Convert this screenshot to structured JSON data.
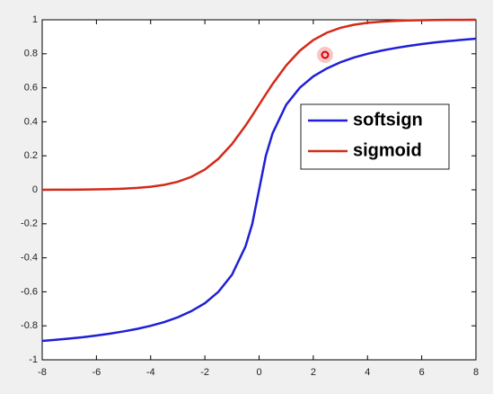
{
  "chart_data": {
    "type": "line",
    "x": [
      -8,
      -7.5,
      -7,
      -6.5,
      -6,
      -5.5,
      -5,
      -4.5,
      -4,
      -3.5,
      -3,
      -2.5,
      -2,
      -1.5,
      -1,
      -0.5,
      -0.25,
      0,
      0.25,
      0.5,
      1,
      1.5,
      2,
      2.5,
      3,
      3.5,
      4,
      4.5,
      5,
      5.5,
      6,
      6.5,
      7,
      7.5,
      8
    ],
    "series": [
      {
        "name": "softsign",
        "color": "#1f1fd6",
        "values": [
          -0.889,
          -0.882,
          -0.875,
          -0.867,
          -0.857,
          -0.846,
          -0.833,
          -0.818,
          -0.8,
          -0.778,
          -0.75,
          -0.714,
          -0.667,
          -0.6,
          -0.5,
          -0.333,
          -0.2,
          0,
          0.2,
          0.333,
          0.5,
          0.6,
          0.667,
          0.714,
          0.75,
          0.778,
          0.8,
          0.818,
          0.833,
          0.846,
          0.857,
          0.867,
          0.875,
          0.882,
          0.889
        ]
      },
      {
        "name": "sigmoid",
        "color": "#d42a1a",
        "values": [
          0.0003,
          0.0006,
          0.0009,
          0.0015,
          0.0025,
          0.0041,
          0.0067,
          0.011,
          0.018,
          0.0293,
          0.0474,
          0.0759,
          0.1192,
          0.1824,
          0.2689,
          0.3775,
          0.4378,
          0.5,
          0.5622,
          0.6225,
          0.7311,
          0.8176,
          0.8808,
          0.9241,
          0.9526,
          0.9707,
          0.982,
          0.989,
          0.9933,
          0.9959,
          0.9975,
          0.9985,
          0.9991,
          0.9994,
          0.9997
        ]
      }
    ],
    "xlim": [
      -8,
      8
    ],
    "xticks": [
      -8,
      -6,
      -4,
      -2,
      0,
      2,
      4,
      6,
      8
    ],
    "ylim": [
      -1,
      1
    ],
    "yticks": [
      -1,
      -0.8,
      -0.6,
      -0.4,
      -0.2,
      0,
      0.2,
      0.4,
      0.6,
      0.8,
      1
    ],
    "grid": false,
    "legend_loc": "right"
  }
}
